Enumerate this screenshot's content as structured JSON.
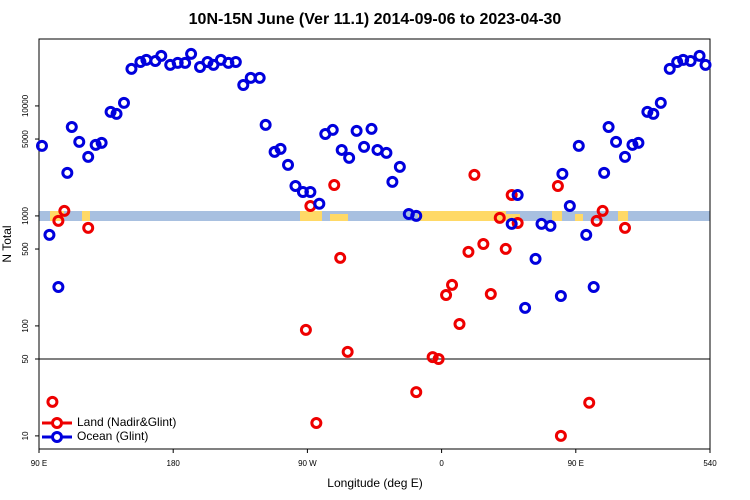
{
  "chart_data": {
    "type": "scatter",
    "title": "10N-15N June (Ver 11.1)   2014-09-06 to 2023-04-30",
    "x_label": "Longitude (deg E)",
    "y_label": "N Total",
    "log_y": true,
    "xlim": [
      90,
      540
    ],
    "ylim": [
      7.6,
      40600
    ],
    "xticks": [
      {
        "value": 90,
        "label": "90 E"
      },
      180,
      {
        "value": 270,
        "label": "90 W"
      },
      {
        "value": 360,
        "label": "0"
      },
      {
        "value": 450,
        "label": "90 E"
      },
      540
    ],
    "yticks": [
      10,
      50,
      100,
      500,
      1000,
      5000,
      10000
    ],
    "hline": 50,
    "series": [
      {
        "name": "Land (Nadir&Glint)",
        "color": "#ee0000",
        "x": [
          99,
          103,
          107,
          123,
          269,
          272,
          276,
          288,
          292,
          297,
          343,
          354,
          358,
          363,
          367,
          372,
          378,
          382,
          388,
          393,
          399,
          403,
          407,
          411,
          438,
          440,
          459,
          464,
          468,
          483
        ],
        "values": [
          20.4,
          901,
          1110,
          778,
          92,
          1230,
          13.1,
          1910,
          415,
          58,
          25,
          52,
          50,
          191,
          236,
          104,
          471,
          2360,
          556,
          195,
          959,
          501,
          1550,
          863,
          1870,
          10,
          20,
          901,
          1110,
          778
        ]
      },
      {
        "name": "Ocean (Glint)",
        "color": "#0000dd",
        "x": [
          92,
          97,
          103,
          109,
          112,
          117,
          123,
          128,
          132,
          138,
          142,
          147,
          152,
          158,
          162,
          168,
          172,
          178,
          183,
          188,
          192,
          198,
          203,
          207,
          212,
          217,
          222,
          227,
          232,
          238,
          242,
          248,
          252,
          257,
          262,
          267,
          272,
          278,
          282,
          287,
          293,
          298,
          303,
          308,
          313,
          317,
          323,
          327,
          332,
          338,
          343,
          407,
          411,
          416,
          423,
          427,
          433,
          440,
          441,
          446,
          452,
          457,
          462,
          469,
          472,
          477,
          483,
          488,
          492,
          498,
          502,
          507,
          513,
          518,
          522,
          527,
          533,
          537
        ],
        "values": [
          4330,
          672,
          226,
          2460,
          6440,
          4710,
          3440,
          4420,
          4610,
          8820,
          8460,
          10650,
          21700,
          25100,
          26200,
          25600,
          28500,
          23600,
          24600,
          24600,
          29700,
          22600,
          25100,
          23600,
          26200,
          24600,
          25100,
          15500,
          18000,
          18000,
          6720,
          3820,
          4070,
          2910,
          1870,
          1650,
          1650,
          1290,
          5560,
          6050,
          3980,
          3370,
          5930,
          4240,
          6180,
          3980,
          3740,
          2040,
          2790,
          1040,
          1000,
          846,
          1550,
          146,
          407,
          846,
          811,
          187,
          2410,
          1230,
          4330,
          672,
          226,
          2460,
          6440,
          4710,
          3440,
          4420,
          4610,
          8820,
          8460,
          10650,
          21700,
          25100,
          26200,
          25600,
          28500,
          23600
        ]
      }
    ]
  }
}
